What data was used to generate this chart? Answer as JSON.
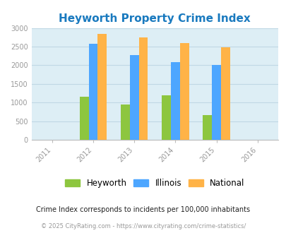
{
  "title": "Heyworth Property Crime Index",
  "title_color": "#1a7abf",
  "years_labels": [
    "2011",
    "2012",
    "2013",
    "2014",
    "2015",
    "2016"
  ],
  "bar_years": [
    1,
    2,
    3,
    4
  ],
  "heyworth": [
    1150,
    950,
    1200,
    660
  ],
  "illinois": [
    2580,
    2280,
    2090,
    2000
  ],
  "national": [
    2850,
    2750,
    2600,
    2490
  ],
  "bar_colors": {
    "heyworth": "#8dc63f",
    "illinois": "#4da6ff",
    "national": "#ffb347"
  },
  "ylim": [
    0,
    3000
  ],
  "yticks": [
    0,
    500,
    1000,
    1500,
    2000,
    2500,
    3000
  ],
  "bg_color": "#ddeef5",
  "legend_labels": [
    "Heyworth",
    "Illinois",
    "National"
  ],
  "footnote1": "Crime Index corresponds to incidents per 100,000 inhabitants",
  "footnote2": "© 2025 CityRating.com - https://www.cityrating.com/crime-statistics/",
  "footnote1_color": "#222222",
  "footnote2_color": "#999999",
  "bar_width": 0.22,
  "grid_color": "#c0d8e4",
  "spine_color": "#bbbbbb",
  "tick_color": "#999999"
}
